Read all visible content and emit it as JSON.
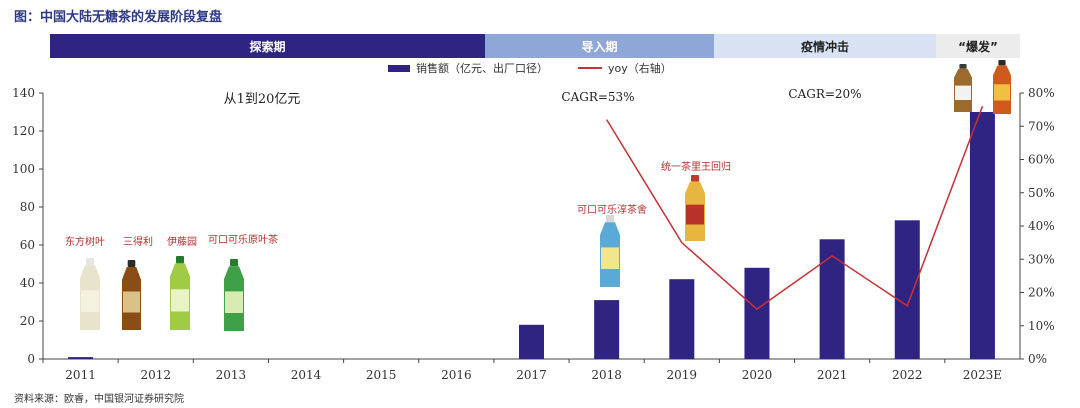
{
  "figure_title": "图：中国大陆无糖茶的发展阶段复盘",
  "phases": [
    {
      "label": "探索期",
      "bg": "#2f2481",
      "fg": "#ffffff"
    },
    {
      "label": "导入期",
      "bg": "#8ea6d8",
      "fg": "#ffffff"
    },
    {
      "label": "疫情冲击",
      "bg": "#d8e2f2",
      "fg": "#222222"
    },
    {
      "label": "“爆发”",
      "bg": "#ececec",
      "fg": "#222222"
    }
  ],
  "colors": {
    "bar": "#2f2481",
    "line": "#c93034",
    "axis": "#444444",
    "annotation": "#b5312f"
  },
  "chart_data": {
    "type": "bar",
    "categories": [
      "2011",
      "2012",
      "2013",
      "2014",
      "2015",
      "2016",
      "2017",
      "2018",
      "2019",
      "2020",
      "2021",
      "2022",
      "2023E"
    ],
    "series": [
      {
        "name": "销售额（亿元、出厂口径）",
        "type": "bar",
        "axis": "left",
        "values": [
          1,
          null,
          null,
          null,
          null,
          null,
          18,
          31,
          42,
          48,
          63,
          73,
          130
        ]
      },
      {
        "name": "yoy（右轴）",
        "type": "line",
        "axis": "right",
        "unit": "%",
        "values": [
          null,
          null,
          null,
          null,
          null,
          null,
          null,
          72,
          35,
          15,
          31,
          16,
          76
        ]
      }
    ],
    "y_left": {
      "min": 0,
      "max": 140,
      "ticks": [
        0,
        20,
        40,
        60,
        80,
        100,
        120,
        140
      ]
    },
    "y_right": {
      "min": 0,
      "max": 80,
      "ticks": [
        "0%",
        "10%",
        "20%",
        "30%",
        "40%",
        "50%",
        "60%",
        "70%",
        "80%"
      ]
    },
    "legend_position": "top",
    "grid": false,
    "phase_annotations": [
      "从1到20亿元",
      "CAGR=53%",
      "CAGR=20%"
    ],
    "product_annotations": [
      {
        "text": "东方树叶",
        "year": "2011"
      },
      {
        "text": "三得利",
        "year": "2012"
      },
      {
        "text": "伊藤园",
        "year": "2013"
      },
      {
        "text": "可口可乐原叶茶",
        "year": "2013"
      },
      {
        "text": "可口可乐淳茶舍",
        "year": "2018"
      },
      {
        "text": "统一茶里王回归",
        "year": "2019"
      }
    ]
  },
  "source": "资料来源：欧睿，中国银河证券研究院"
}
